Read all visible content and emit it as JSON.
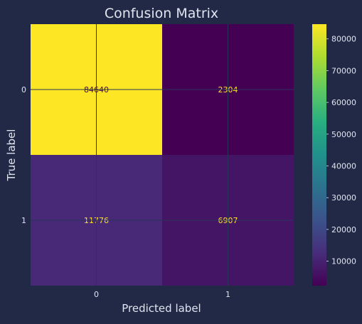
{
  "chart_data": {
    "type": "heatmap",
    "title": "Confusion Matrix",
    "xlabel": "Predicted label",
    "ylabel": "True label",
    "x_categories": [
      "0",
      "1"
    ],
    "y_categories": [
      "0",
      "1"
    ],
    "matrix": [
      [
        84640,
        2304
      ],
      [
        11776,
        6907
      ]
    ],
    "colormap": "viridis",
    "colorbar": {
      "ticks": [
        10000,
        20000,
        30000,
        40000,
        50000,
        60000,
        70000,
        80000
      ],
      "range": [
        2304,
        84640
      ]
    },
    "grid": true
  },
  "colors": {
    "background": "#212946",
    "text": "#e0e4ef",
    "grid": "#2a3459",
    "cell_text_on_dark": "#fde725",
    "cell_text_on_light": "#440154"
  }
}
